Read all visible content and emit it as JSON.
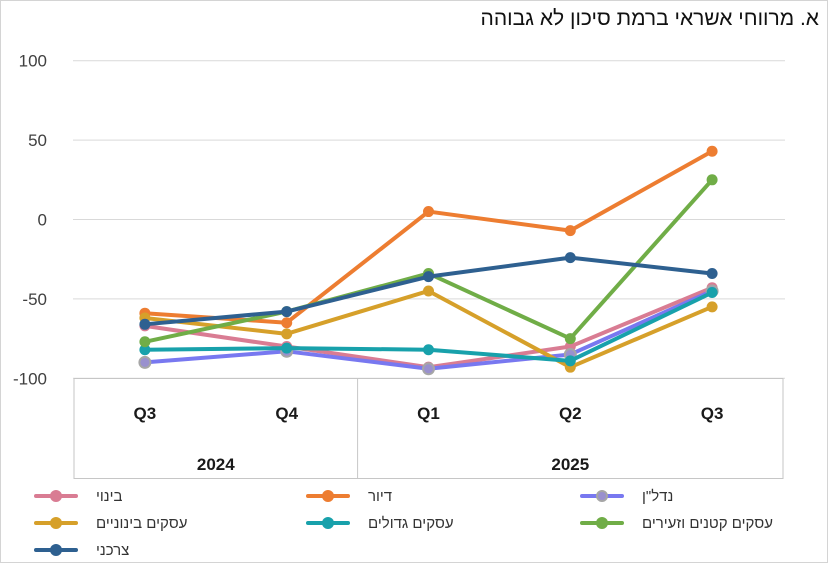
{
  "title": "א. מרווחי אשראי ברמת סיכון לא גבוהה",
  "chart_data": {
    "type": "line",
    "categories": [
      "Q3",
      "Q4",
      "Q1",
      "Q2",
      "Q3"
    ],
    "year_groups": [
      {
        "label": "2024",
        "span": 2
      },
      {
        "label": "2025",
        "span": 3
      }
    ],
    "ylim": [
      -100,
      100
    ],
    "yticks": [
      100,
      50,
      0,
      -50,
      -100
    ],
    "grid": true,
    "legend_position": "bottom",
    "series": [
      {
        "name": "בינוי",
        "color": "#D97C93",
        "values": [
          -67,
          -80,
          -93,
          -80,
          -43
        ]
      },
      {
        "name": "דיור",
        "color": "#ED7D31",
        "values": [
          -59,
          -65,
          5,
          -7,
          43
        ]
      },
      {
        "name": "נדל\"ן",
        "color": "#7878F0",
        "marker_fill": "#9990CE",
        "marker_stroke": "#A6A6A6",
        "values": [
          -90,
          -83,
          -94,
          -85,
          -45
        ]
      },
      {
        "name": "עסקים בינוניים",
        "color": "#D6A02A",
        "values": [
          -62,
          -72,
          -45,
          -93,
          -55
        ]
      },
      {
        "name": "עסקים גדולים",
        "color": "#18A1AB",
        "values": [
          -82,
          -81,
          -82,
          -89,
          -46
        ]
      },
      {
        "name": "עסקים קטנים וזעירים",
        "color": "#70AD47",
        "values": [
          -77,
          -58,
          -34,
          -75,
          25
        ]
      },
      {
        "name": "צרכני",
        "color": "#2E6090",
        "values": [
          -66,
          -58,
          -36,
          -24,
          -34
        ]
      }
    ],
    "style": {
      "gridline_color": "#D9D9D9",
      "axis_box_color": "#C6C6C6",
      "tick_label_color": "#404040",
      "category_label_color": "#1a1a1a"
    }
  }
}
